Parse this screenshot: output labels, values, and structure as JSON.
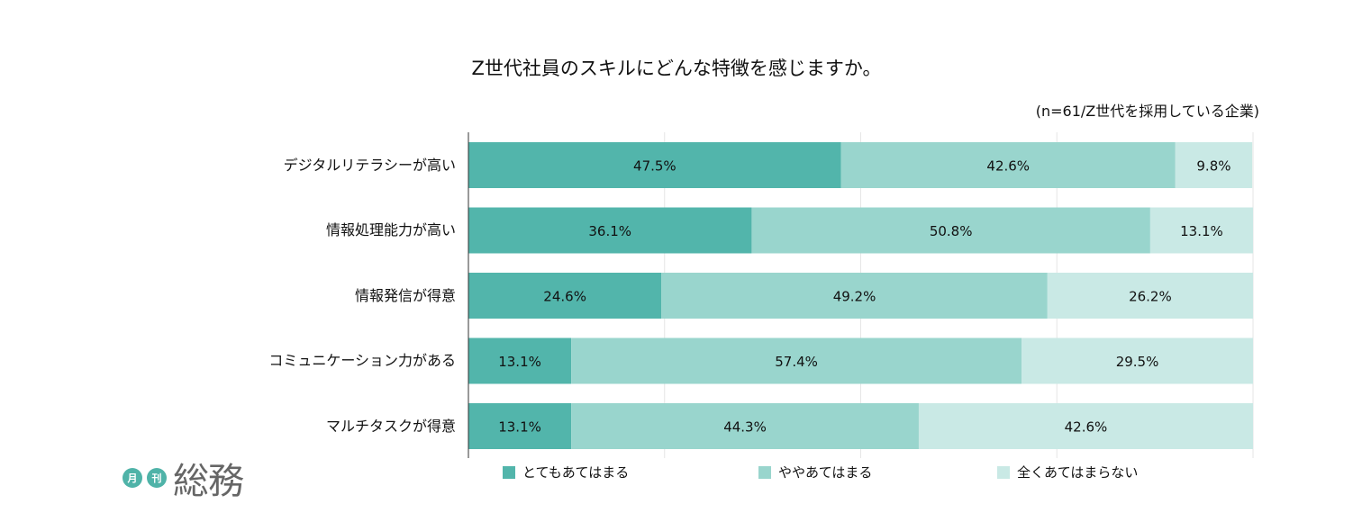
{
  "chart_data": {
    "type": "bar",
    "orientation": "horizontal",
    "stacked": true,
    "title": "Z世代社員のスキルにどんな特徴を感じますか。",
    "subtitle": "(n=61/Z世代を採用している企業)",
    "categories": [
      "デジタルリテラシーが高い",
      "情報処理能力が高い",
      "情報発信が得意",
      "コミュニケーション力がある",
      "マルチタスクが得意"
    ],
    "series": [
      {
        "name": "とてもあてはまる",
        "color": "#52b5ab",
        "values": [
          47.5,
          36.1,
          24.6,
          13.1,
          13.1
        ],
        "labels": [
          "47.5%",
          "36.1%",
          "24.6%",
          "13.1%",
          "13.1%"
        ]
      },
      {
        "name": "ややあてはまる",
        "color": "#99d5cd",
        "values": [
          42.6,
          50.8,
          49.2,
          57.4,
          44.3
        ],
        "labels": [
          "42.6%",
          "50.8%",
          "49.2%",
          "57.4%",
          "44.3%"
        ]
      },
      {
        "name": "全くあてはまらない",
        "color": "#c9e9e5",
        "values": [
          9.8,
          13.1,
          26.2,
          29.5,
          42.6
        ],
        "labels": [
          "9.8%",
          "13.1%",
          "26.2%",
          "29.5%",
          "42.6%"
        ]
      }
    ],
    "xlim": [
      0,
      100
    ],
    "grid": true,
    "legend_position": "bottom"
  },
  "logo": {
    "badge1": "月",
    "badge2": "刊",
    "name": "総務"
  }
}
